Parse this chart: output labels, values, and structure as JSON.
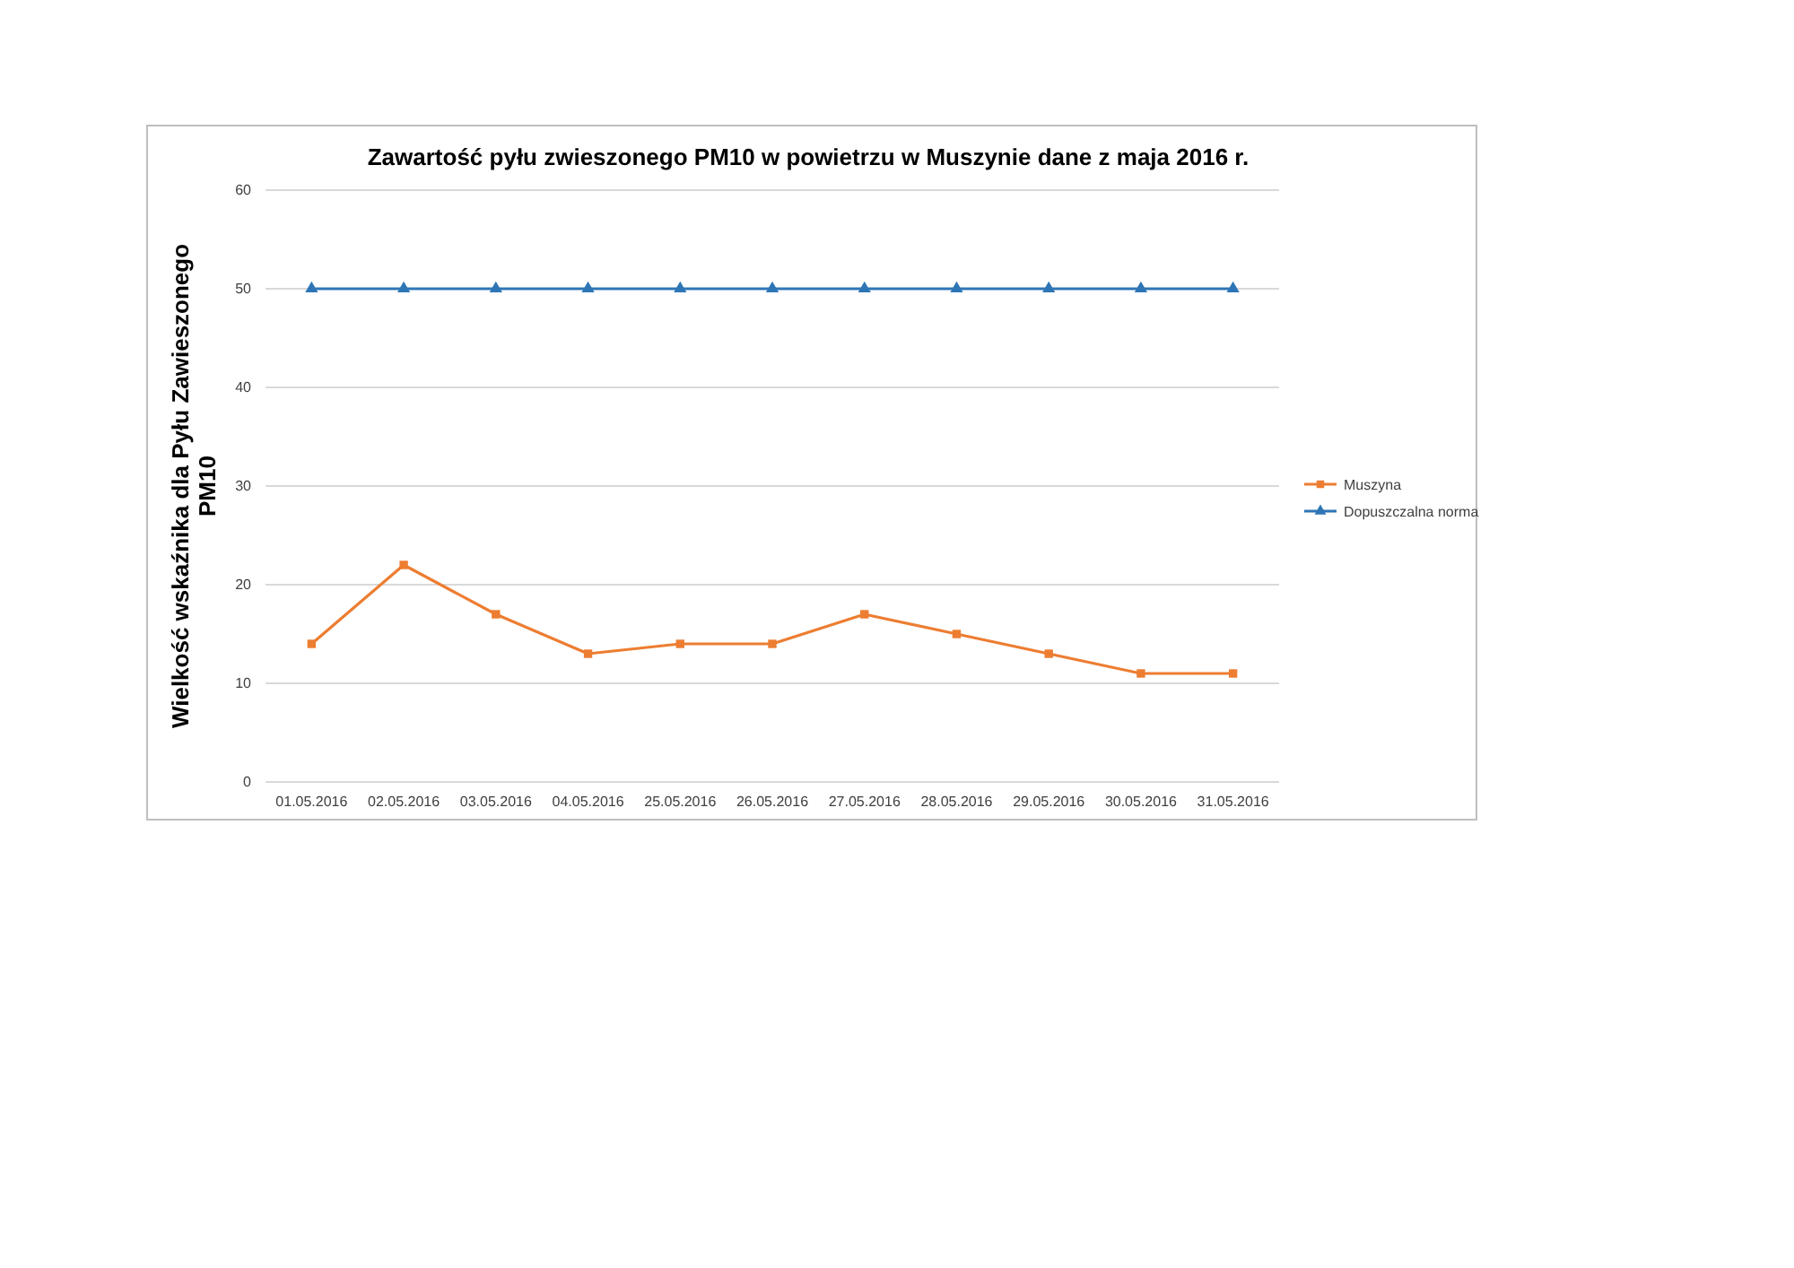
{
  "chart_data": {
    "type": "line",
    "title": "Zawartość pyłu zwieszonego PM10 w powietrzu w  Muszynie dane z maja 2016 r.",
    "ylabel": "Wielkość  wskaźnika dla Pyłu Zawieszonego PM10",
    "categories": [
      "01.05.2016",
      "02.05.2016",
      "03.05.2016",
      "04.05.2016",
      "25.05.2016",
      "26.05.2016",
      "27.05.2016",
      "28.05.2016",
      "29.05.2016",
      "30.05.2016",
      "31.05.2016"
    ],
    "series": [
      {
        "name": "Muszyna",
        "color": "#ed7d31",
        "marker": "square",
        "values": [
          14,
          22,
          17,
          13,
          14,
          14,
          17,
          15,
          13,
          11,
          11
        ]
      },
      {
        "name": "Dopuszczalna norma",
        "color": "#2e75b6",
        "marker": "triangle",
        "values": [
          50,
          50,
          50,
          50,
          50,
          50,
          50,
          50,
          50,
          50,
          50
        ]
      }
    ],
    "ylim": [
      0,
      60
    ],
    "yticks": [
      0,
      10,
      20,
      30,
      40,
      50,
      60
    ],
    "grid": "y",
    "legend": "right",
    "line_style": "solid"
  }
}
